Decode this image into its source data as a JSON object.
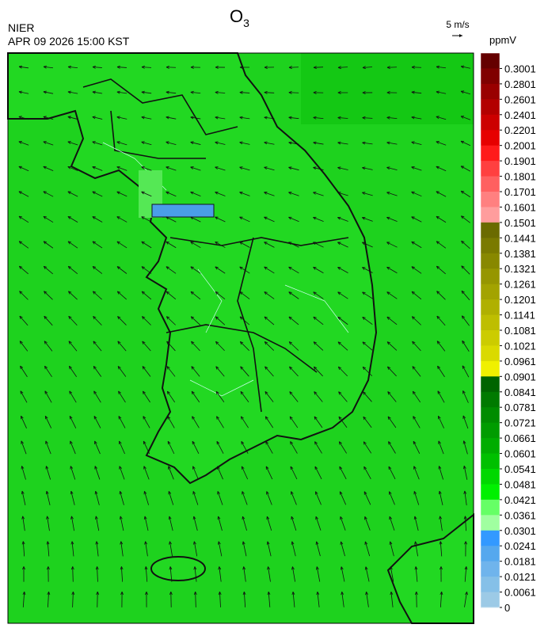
{
  "header": {
    "title_main": "O",
    "title_subscript": "3",
    "agency": "NIER",
    "datetime": "APR 09 2026 15:00 KST",
    "wind_scale": "5 m/s"
  },
  "colorbar": {
    "unit": "ppmV",
    "ticks": [
      0.3001,
      0.2801,
      0.2601,
      0.2401,
      0.2201,
      0.2001,
      0.1901,
      0.1801,
      0.1701,
      0.1601,
      0.1501,
      0.1441,
      0.1381,
      0.1321,
      0.1261,
      0.1201,
      0.1141,
      0.1081,
      0.1021,
      0.0961,
      0.0901,
      0.0841,
      0.0781,
      0.0721,
      0.0661,
      0.0601,
      0.0541,
      0.0481,
      0.0421,
      0.0361,
      0.0301,
      0.0241,
      0.0181,
      0.0121,
      0.0061,
      0
    ],
    "colors": [
      "#650000",
      "#800000",
      "#990000",
      "#b30000",
      "#cc0000",
      "#e60000",
      "#ff1a1a",
      "#ff4040",
      "#ff6060",
      "#ff8080",
      "#ff9d9d",
      "#6b6b00",
      "#7a7a00",
      "#888800",
      "#969600",
      "#a3a300",
      "#b0b000",
      "#bebe00",
      "#cccc00",
      "#dada00",
      "#f0f000",
      "#006400",
      "#007a00",
      "#008c00",
      "#009c00",
      "#00ad00",
      "#00c000",
      "#00d800",
      "#00f000",
      "#66ff66",
      "#a0ffa0",
      "#3399ff",
      "#55a8ee",
      "#6fb4ec",
      "#85c0e8",
      "#9ccae6"
    ]
  }
}
